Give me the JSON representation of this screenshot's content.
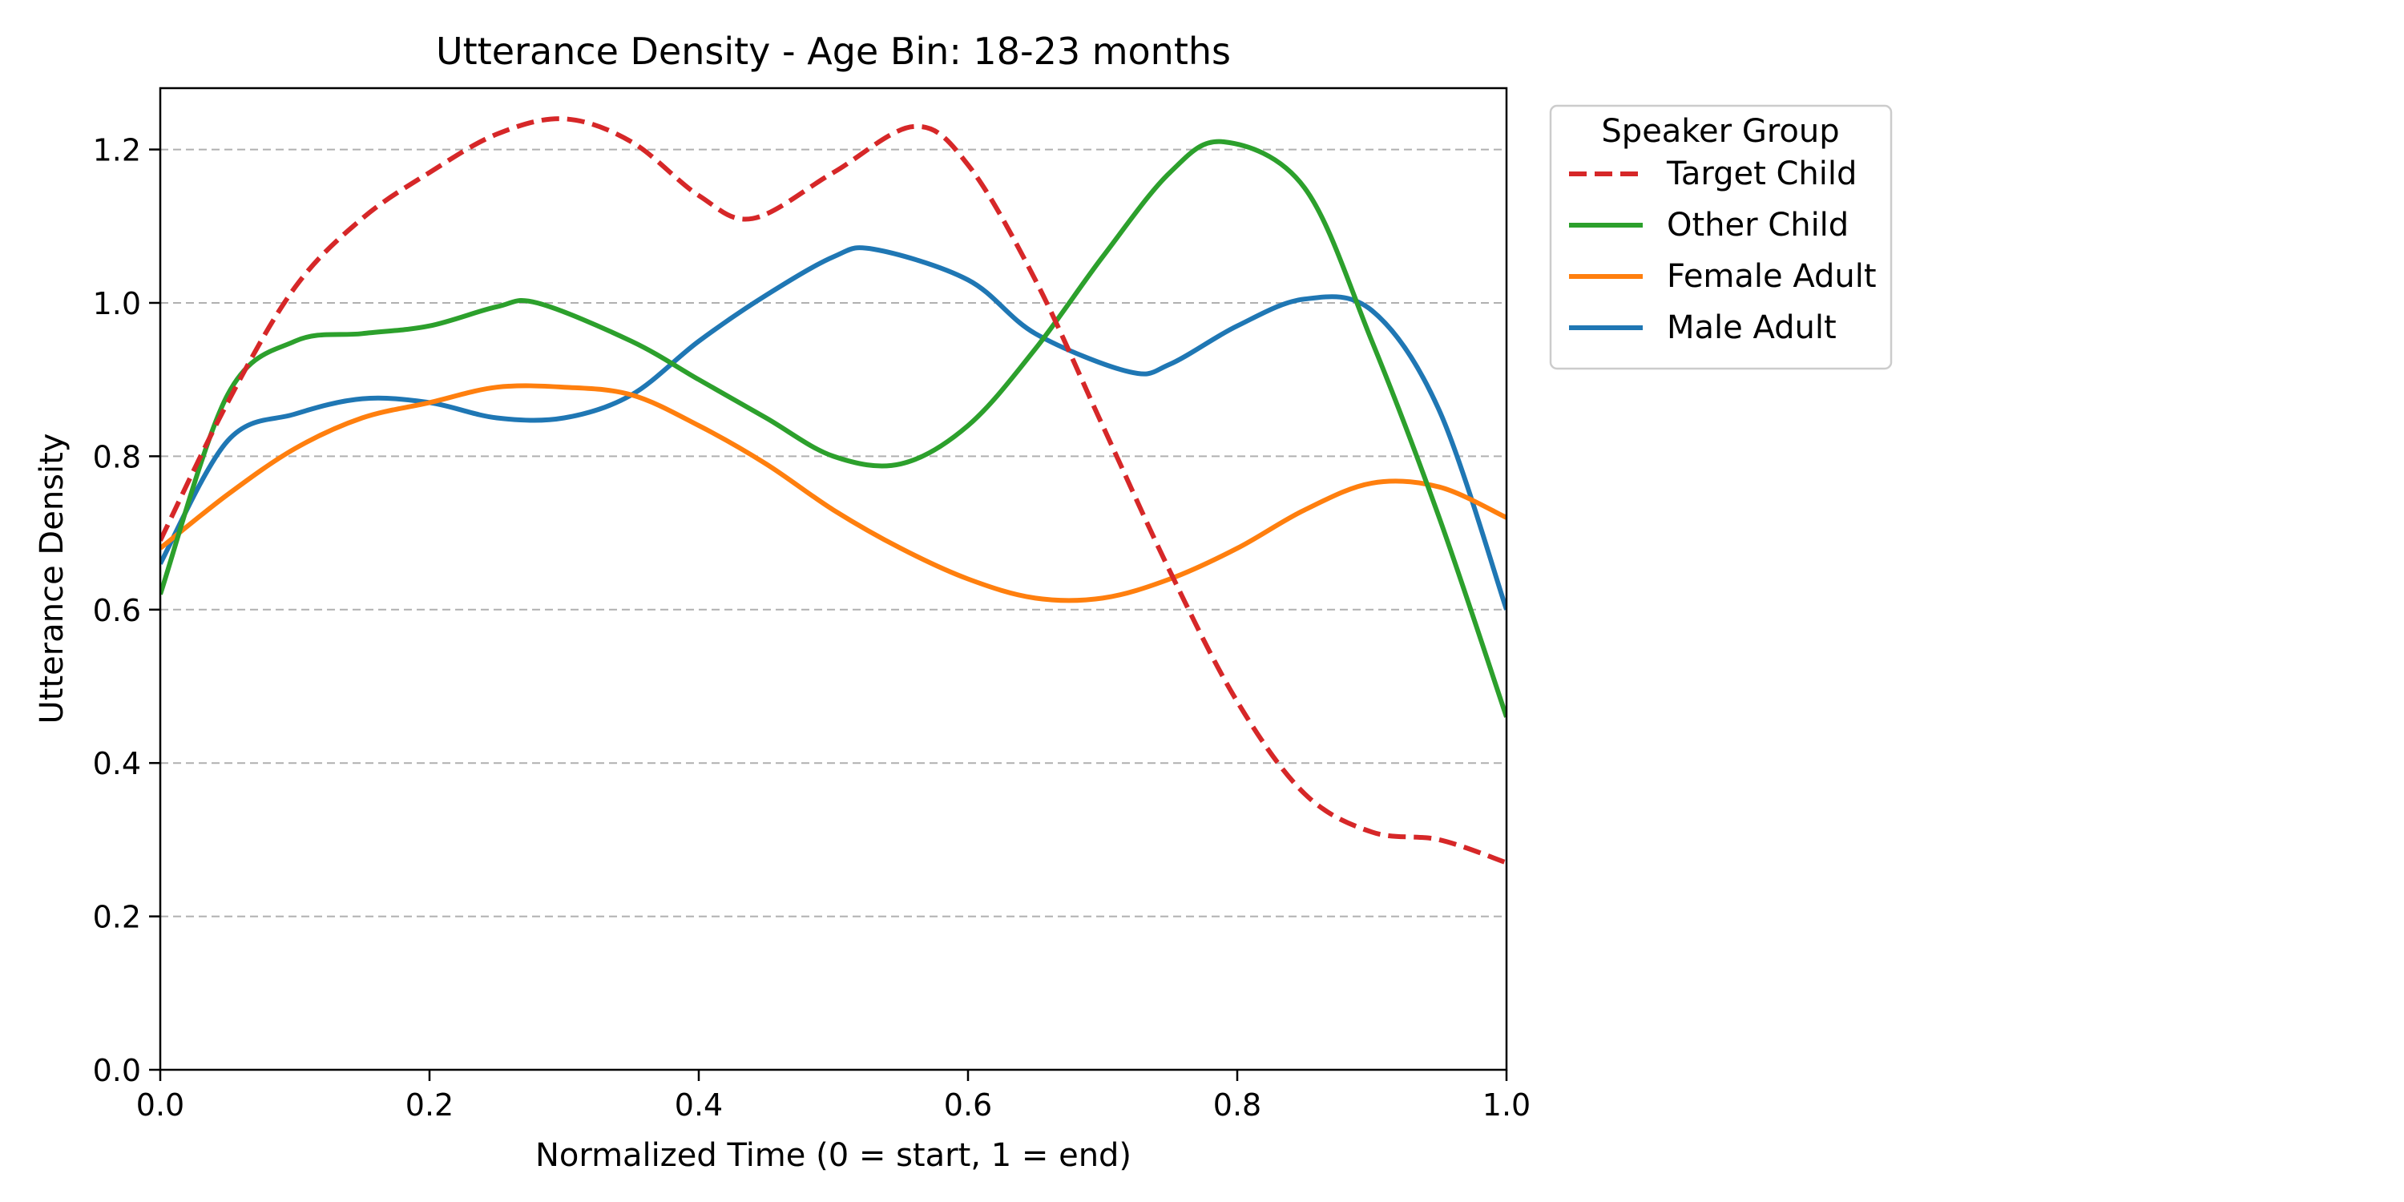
{
  "chart_data": {
    "type": "line",
    "title": "Utterance Density - Age Bin: 18-23 months",
    "xlabel": "Normalized Time (0 = start, 1 = end)",
    "ylabel": "Utterance Density",
    "xlim": [
      0.0,
      1.0
    ],
    "ylim": [
      0.0,
      1.28
    ],
    "xticks": [
      "0.0",
      "0.2",
      "0.4",
      "0.6",
      "0.8",
      "1.0"
    ],
    "yticks": [
      "0.0",
      "0.2",
      "0.4",
      "0.6",
      "0.8",
      "1.0",
      "1.2"
    ],
    "grid": "horizontal dashed",
    "legend": {
      "title": "Speaker Group",
      "placement": "outside upper-right"
    },
    "series": [
      {
        "name": "Target Child",
        "color": "#d62728",
        "style": "dashed",
        "points": [
          [
            0.0,
            0.69
          ],
          [
            0.05,
            0.87
          ],
          [
            0.1,
            1.02
          ],
          [
            0.15,
            1.11
          ],
          [
            0.2,
            1.17
          ],
          [
            0.25,
            1.22
          ],
          [
            0.3,
            1.24
          ],
          [
            0.35,
            1.21
          ],
          [
            0.4,
            1.14
          ],
          [
            0.44,
            1.11
          ],
          [
            0.5,
            1.17
          ],
          [
            0.56,
            1.23
          ],
          [
            0.6,
            1.18
          ],
          [
            0.65,
            1.03
          ],
          [
            0.7,
            0.84
          ],
          [
            0.75,
            0.65
          ],
          [
            0.8,
            0.48
          ],
          [
            0.85,
            0.36
          ],
          [
            0.9,
            0.31
          ],
          [
            0.95,
            0.3
          ],
          [
            1.0,
            0.27
          ]
        ]
      },
      {
        "name": "Other Child",
        "color": "#2ca02c",
        "style": "solid",
        "points": [
          [
            0.0,
            0.62
          ],
          [
            0.05,
            0.88
          ],
          [
            0.1,
            0.95
          ],
          [
            0.15,
            0.96
          ],
          [
            0.2,
            0.97
          ],
          [
            0.25,
            0.995
          ],
          [
            0.28,
            1.0
          ],
          [
            0.35,
            0.95
          ],
          [
            0.4,
            0.9
          ],
          [
            0.45,
            0.85
          ],
          [
            0.5,
            0.8
          ],
          [
            0.55,
            0.79
          ],
          [
            0.6,
            0.84
          ],
          [
            0.65,
            0.94
          ],
          [
            0.7,
            1.06
          ],
          [
            0.75,
            1.17
          ],
          [
            0.79,
            1.21
          ],
          [
            0.85,
            1.15
          ],
          [
            0.9,
            0.95
          ],
          [
            0.95,
            0.72
          ],
          [
            1.0,
            0.46
          ]
        ]
      },
      {
        "name": "Female Adult",
        "color": "#ff7f0e",
        "style": "solid",
        "points": [
          [
            0.0,
            0.68
          ],
          [
            0.05,
            0.75
          ],
          [
            0.1,
            0.81
          ],
          [
            0.15,
            0.85
          ],
          [
            0.2,
            0.87
          ],
          [
            0.25,
            0.89
          ],
          [
            0.3,
            0.89
          ],
          [
            0.35,
            0.88
          ],
          [
            0.4,
            0.84
          ],
          [
            0.45,
            0.79
          ],
          [
            0.5,
            0.73
          ],
          [
            0.55,
            0.68
          ],
          [
            0.6,
            0.64
          ],
          [
            0.65,
            0.615
          ],
          [
            0.7,
            0.615
          ],
          [
            0.75,
            0.64
          ],
          [
            0.8,
            0.68
          ],
          [
            0.85,
            0.73
          ],
          [
            0.9,
            0.765
          ],
          [
            0.95,
            0.76
          ],
          [
            1.0,
            0.72
          ]
        ]
      },
      {
        "name": "Male Adult",
        "color": "#1f77b4",
        "style": "solid",
        "points": [
          [
            0.0,
            0.66
          ],
          [
            0.05,
            0.82
          ],
          [
            0.1,
            0.855
          ],
          [
            0.15,
            0.875
          ],
          [
            0.2,
            0.87
          ],
          [
            0.25,
            0.85
          ],
          [
            0.3,
            0.85
          ],
          [
            0.35,
            0.88
          ],
          [
            0.4,
            0.95
          ],
          [
            0.45,
            1.01
          ],
          [
            0.5,
            1.06
          ],
          [
            0.53,
            1.07
          ],
          [
            0.6,
            1.03
          ],
          [
            0.65,
            0.96
          ],
          [
            0.72,
            0.91
          ],
          [
            0.75,
            0.92
          ],
          [
            0.8,
            0.97
          ],
          [
            0.85,
            1.005
          ],
          [
            0.9,
            0.99
          ],
          [
            0.95,
            0.86
          ],
          [
            1.0,
            0.6
          ]
        ]
      }
    ]
  }
}
